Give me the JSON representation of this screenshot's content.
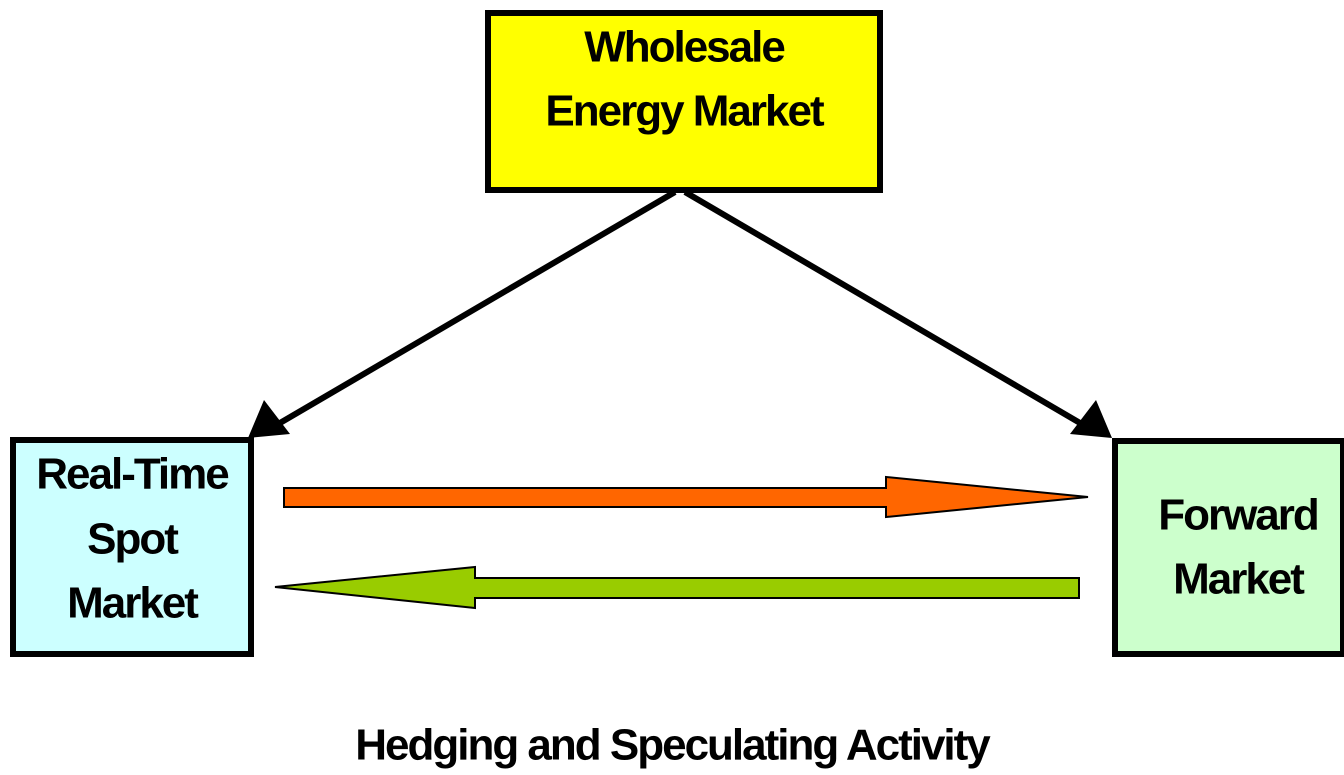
{
  "nodes": [
    {
      "label_lines": [
        "Wholesale",
        "Energy Market"
      ]
    },
    {
      "label_lines": [
        "Real-Time",
        "Spot",
        "Market"
      ]
    },
    {
      "label_lines": [
        "Forward",
        "Market"
      ]
    }
  ],
  "caption": "Hedging and Speculating Activity"
}
